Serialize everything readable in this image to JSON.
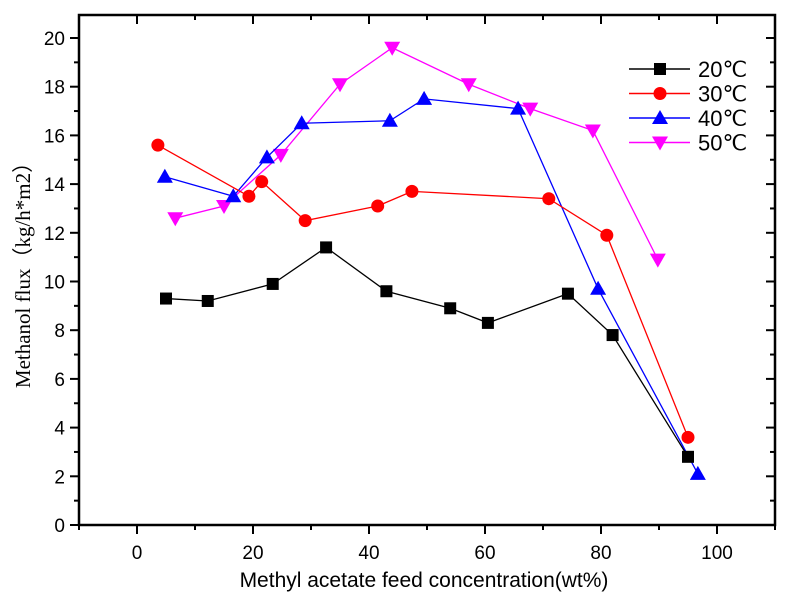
{
  "chart_data": {
    "type": "line",
    "title": "",
    "xlabel": "Methyl acetate feed concentration(wt%)",
    "ylabel": "Methanol  flux（kg/h*m2）",
    "xlim": [
      -10,
      110
    ],
    "ylim": [
      0,
      21
    ],
    "x_ticks": [
      0,
      20,
      40,
      60,
      80,
      100
    ],
    "y_ticks": [
      0,
      2,
      4,
      6,
      8,
      10,
      12,
      14,
      16,
      18,
      20
    ],
    "grid": false,
    "legend_position": "top-right",
    "series": [
      {
        "name": "20℃",
        "color": "#000000",
        "marker": "square",
        "x": [
          5,
          12.2,
          23.4,
          32.6,
          43,
          54,
          60.5,
          74.3,
          82,
          95
        ],
        "y": [
          9.3,
          9.2,
          9.9,
          11.4,
          9.6,
          8.9,
          8.3,
          9.5,
          7.8,
          2.8
        ]
      },
      {
        "name": "30℃",
        "color": "#ff0000",
        "marker": "circle",
        "x": [
          3.6,
          19.3,
          21.5,
          29,
          41.5,
          47.4,
          71,
          81,
          95
        ],
        "y": [
          15.6,
          13.5,
          14.1,
          12.5,
          13.1,
          13.7,
          13.4,
          11.9,
          3.6
        ]
      },
      {
        "name": "40℃",
        "color": "#0000ff",
        "marker": "triangle-up",
        "x": [
          4.8,
          16.6,
          22.4,
          28.4,
          43.6,
          49.5,
          65.7,
          79.5,
          96.7
        ],
        "y": [
          14.3,
          13.5,
          15.1,
          16.5,
          16.6,
          17.5,
          17.1,
          9.7,
          2.1
        ]
      },
      {
        "name": "50℃",
        "color": "#ff00ff",
        "marker": "triangle-down",
        "x": [
          6.6,
          15,
          24.8,
          35,
          44,
          57.2,
          67.8,
          78.6,
          89.8
        ],
        "y": [
          12.6,
          13.1,
          15.2,
          18.1,
          19.6,
          18.1,
          17.1,
          16.2,
          10.9
        ]
      }
    ]
  }
}
